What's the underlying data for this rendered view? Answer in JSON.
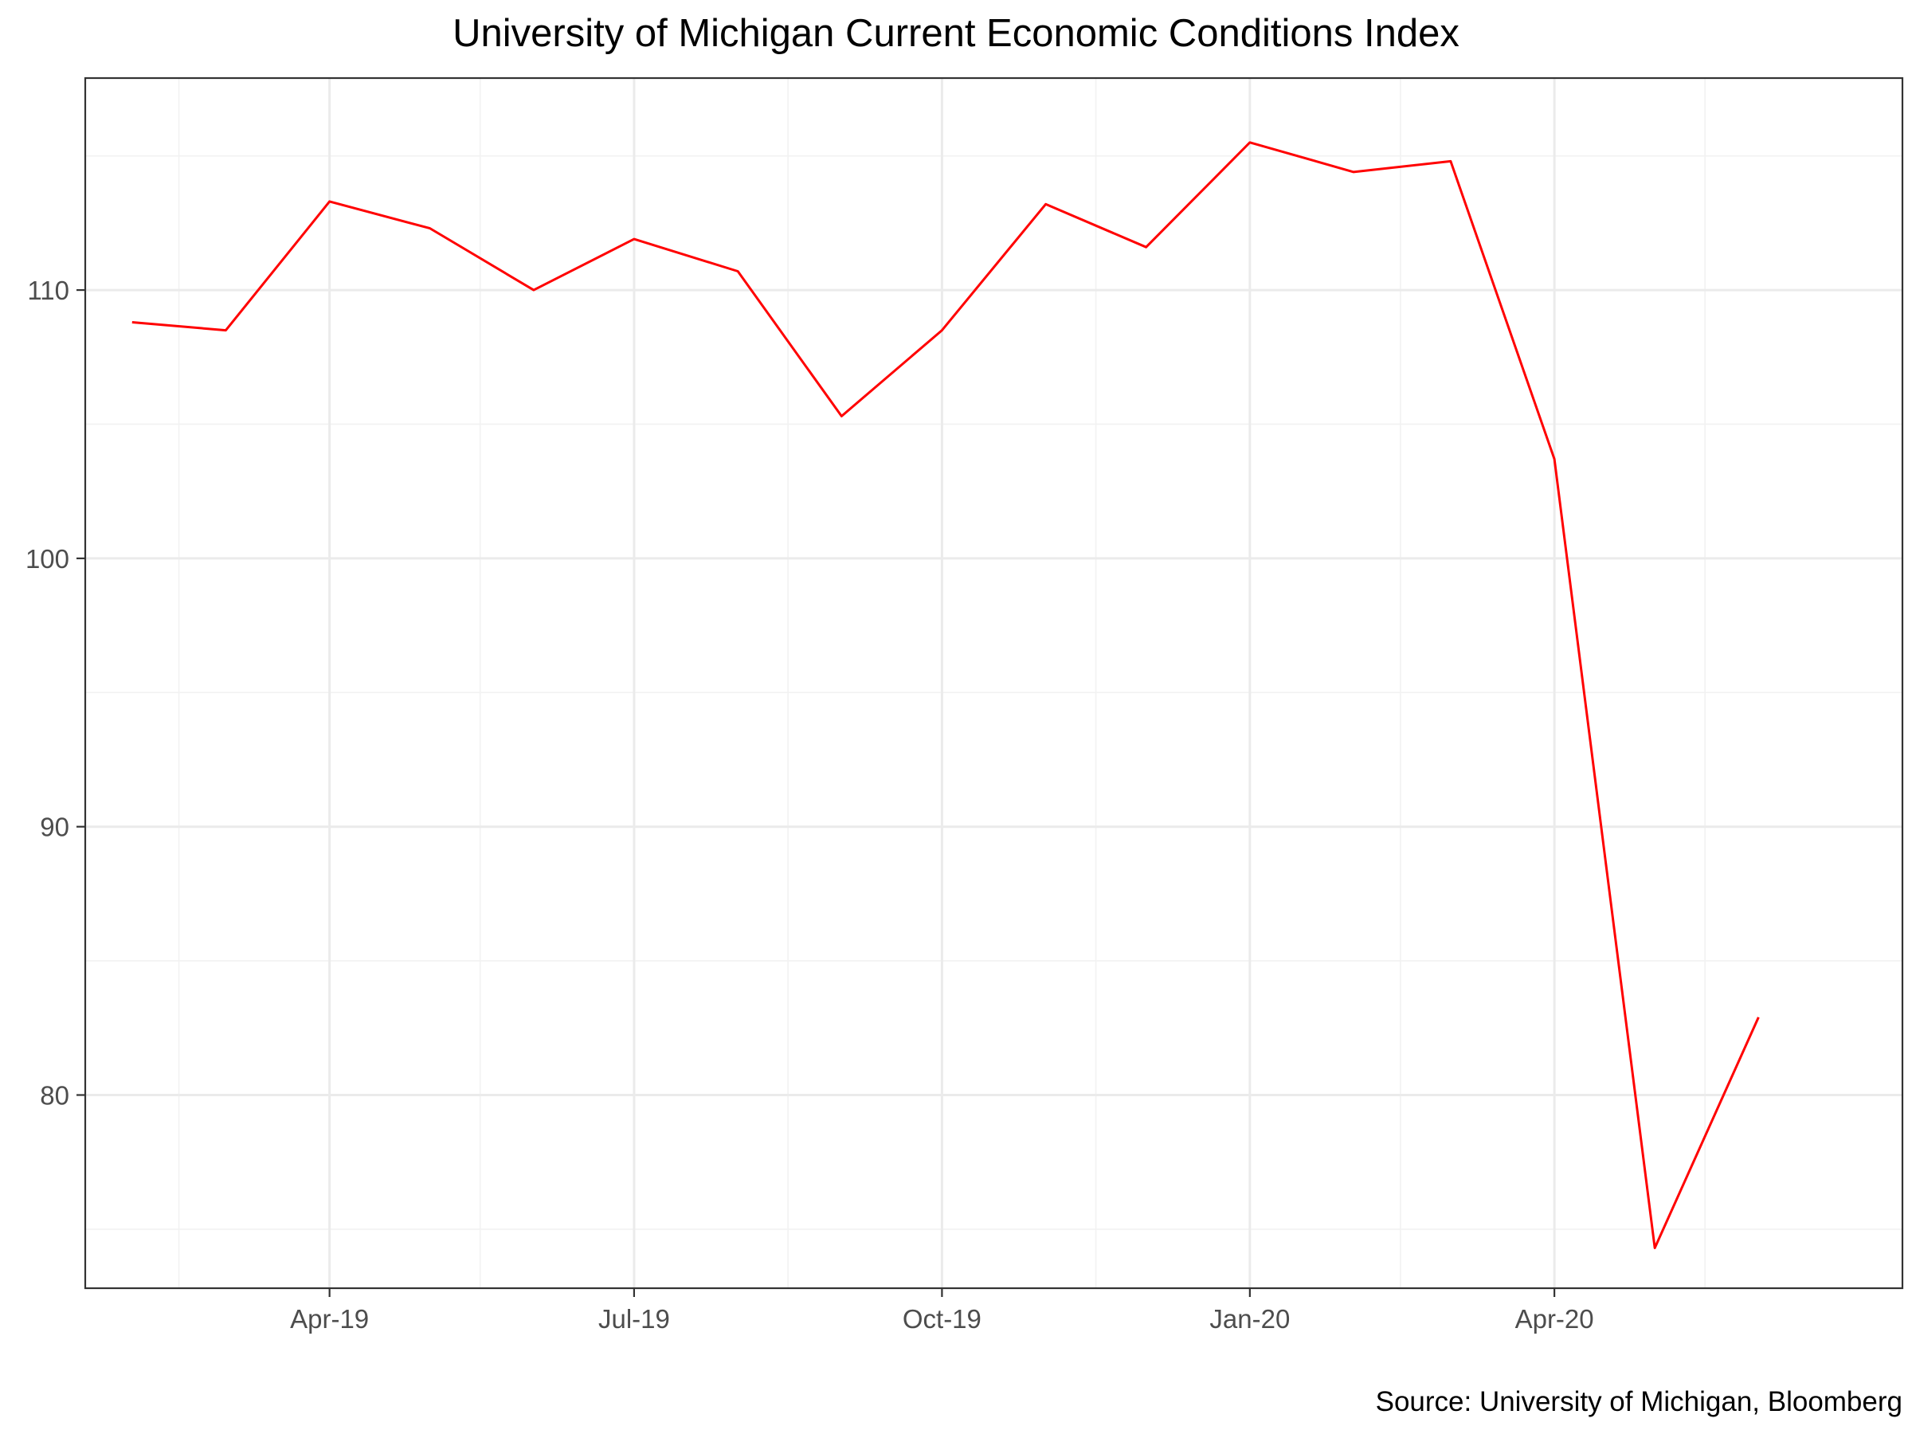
{
  "chart_data": {
    "type": "line",
    "title": "University of Michigan Current Economic Conditions Index",
    "caption": "Source: University of Michigan, Bloomberg",
    "xlabel": "",
    "ylabel": "",
    "x": [
      "2019-02-01",
      "2019-03-01",
      "2019-04-01",
      "2019-05-01",
      "2019-06-01",
      "2019-07-01",
      "2019-08-01",
      "2019-09-01",
      "2019-10-01",
      "2019-11-01",
      "2019-12-01",
      "2020-01-01",
      "2020-02-01",
      "2020-03-01",
      "2020-04-01",
      "2020-05-01",
      "2020-06-01"
    ],
    "series": [
      {
        "values": [
          108.8,
          108.5,
          113.3,
          112.3,
          110.0,
          111.9,
          110.7,
          105.3,
          108.5,
          113.2,
          111.6,
          115.5,
          114.4,
          114.8,
          103.7,
          74.3,
          82.9
        ]
      }
    ],
    "xlim": [
      "2019-01-18",
      "2020-07-14"
    ],
    "ylim": [
      72.8,
      117.9
    ],
    "x_ticks": [
      {
        "date": "2019-04-01",
        "label": "Apr-19"
      },
      {
        "date": "2019-07-01",
        "label": "Jul-19"
      },
      {
        "date": "2019-10-01",
        "label": "Oct-19"
      },
      {
        "date": "2020-01-01",
        "label": "Jan-20"
      },
      {
        "date": "2020-04-01",
        "label": "Apr-20"
      }
    ],
    "x_minor_ticks": [
      "2019-02-15",
      "2019-05-16",
      "2019-08-16",
      "2019-11-16",
      "2020-02-15",
      "2020-05-16"
    ],
    "y_ticks": [
      80,
      90,
      100,
      110
    ],
    "y_minor_ticks": [
      75,
      85,
      95,
      105,
      115
    ],
    "grid": true,
    "colors": {
      "line": "#ff0000",
      "grid_major": "#ebebeb",
      "grid_minor": "#f2f2f2",
      "panel_border": "#333333",
      "tick_text": "#4d4d4d"
    }
  }
}
